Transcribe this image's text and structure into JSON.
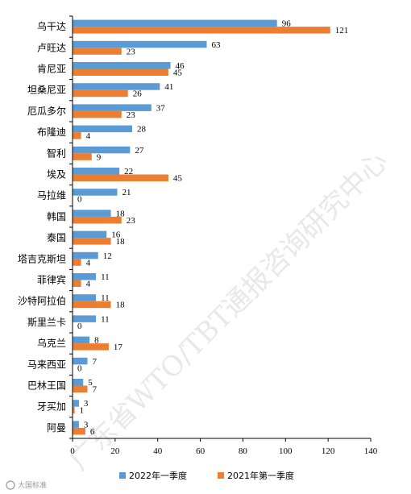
{
  "chart_data": {
    "type": "bar",
    "orientation": "horizontal",
    "categories": [
      "乌干达",
      "卢旺达",
      "肯尼亚",
      "坦桑尼亚",
      "厄瓜多尔",
      "布隆迪",
      "智利",
      "埃及",
      "马拉维",
      "韩国",
      "泰国",
      "塔吉克斯坦",
      "菲律宾",
      "沙特阿拉伯",
      "斯里兰卡",
      "乌克兰",
      "马来西亚",
      "巴林王国",
      "牙买加",
      "阿曼"
    ],
    "series": [
      {
        "name": "2022年一季度",
        "color": "#5b9bd5",
        "values": [
          96,
          63,
          46,
          41,
          37,
          28,
          27,
          22,
          21,
          18,
          16,
          12,
          11,
          11,
          11,
          8,
          7,
          5,
          3,
          3
        ]
      },
      {
        "name": "2021年第一季度",
        "color": "#ed7d31",
        "values": [
          121,
          23,
          45,
          26,
          23,
          4,
          9,
          45,
          0,
          23,
          18,
          4,
          4,
          18,
          0,
          17,
          0,
          7,
          1,
          6
        ]
      }
    ],
    "xlim": [
      0,
      140
    ],
    "xticks": [
      "0",
      "20",
      "40",
      "60",
      "80",
      "100",
      "120",
      "140"
    ],
    "grid": false,
    "legend_position": "bottom"
  },
  "watermark": "广东省WTO/TBT通报咨询研究中心",
  "brand_mark": "大国标准"
}
